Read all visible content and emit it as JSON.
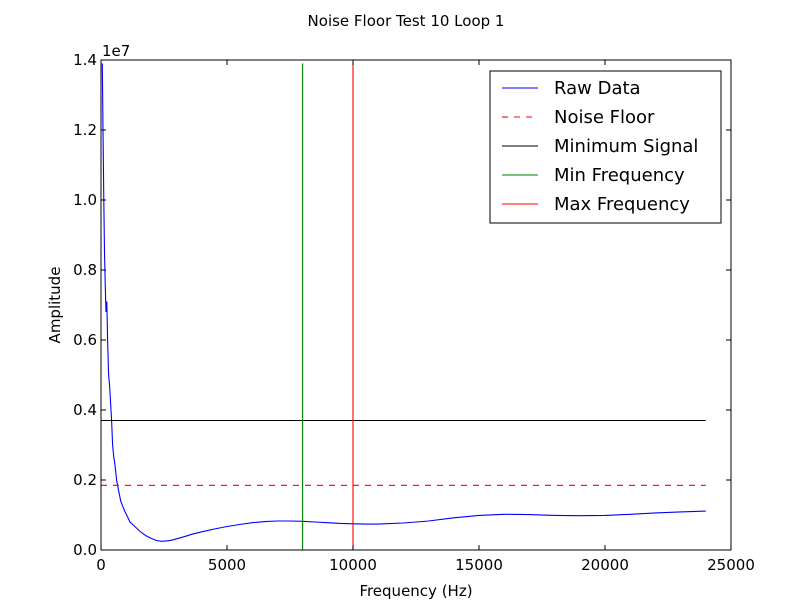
{
  "chart_data": {
    "type": "line",
    "title": "Noise Floor Test 10 Loop 1",
    "xlabel": "Frequency (Hz)",
    "ylabel": "Amplitude",
    "y_offset_label": "1e7",
    "xlim": [
      0,
      25000
    ],
    "ylim": [
      0,
      1.4
    ],
    "x_ticks": [
      0,
      5000,
      10000,
      15000,
      20000,
      25000
    ],
    "x_tick_labels": [
      "0",
      "5000",
      "10000",
      "15000",
      "20000",
      "25000"
    ],
    "y_ticks": [
      0,
      0.2,
      0.4,
      0.6,
      0.8,
      1.0,
      1.2,
      1.4
    ],
    "y_tick_labels": [
      "0.0",
      "0.2",
      "0.4",
      "0.6",
      "0.8",
      "1.0",
      "1.2",
      "1.4"
    ],
    "grid": false,
    "legend_position": "top-right",
    "series": [
      {
        "name": "Raw Data",
        "color": "#0000ff",
        "style": "solid",
        "x": [
          50,
          80,
          110,
          140,
          170,
          200,
          230,
          260,
          300,
          340,
          380,
          420,
          460,
          500,
          560,
          620,
          700,
          780,
          860,
          950,
          1050,
          1150,
          1300,
          1450,
          1600,
          1800,
          2000,
          2200,
          2400,
          2600,
          2800,
          3000,
          3300,
          3600,
          4000,
          4500,
          5000,
          5500,
          6000,
          6500,
          7000,
          7500,
          8000,
          8500,
          9000,
          9500,
          10000,
          10500,
          11000,
          12000,
          13000,
          14000,
          15000,
          16000,
          17000,
          18000,
          19000,
          20000,
          21000,
          22000,
          23000,
          24000
        ],
        "y": [
          1.39,
          1.2,
          1.0,
          0.85,
          0.75,
          0.68,
          0.71,
          0.6,
          0.5,
          0.47,
          0.42,
          0.37,
          0.3,
          0.27,
          0.24,
          0.2,
          0.17,
          0.14,
          0.125,
          0.11,
          0.095,
          0.08,
          0.07,
          0.06,
          0.05,
          0.04,
          0.033,
          0.027,
          0.025,
          0.026,
          0.028,
          0.032,
          0.038,
          0.045,
          0.052,
          0.06,
          0.067,
          0.073,
          0.078,
          0.081,
          0.083,
          0.083,
          0.082,
          0.08,
          0.078,
          0.076,
          0.075,
          0.074,
          0.074,
          0.077,
          0.083,
          0.092,
          0.099,
          0.102,
          0.101,
          0.099,
          0.098,
          0.099,
          0.102,
          0.106,
          0.109,
          0.111
        ]
      },
      {
        "name": "Noise Floor",
        "color": "#ff0000",
        "style": "dashed",
        "x": [
          0,
          24000
        ],
        "y": [
          0.185,
          0.185
        ]
      },
      {
        "name": "Minimum Signal",
        "color": "#000000",
        "style": "solid",
        "x": [
          0,
          24000
        ],
        "y": [
          0.37,
          0.37
        ]
      },
      {
        "name": "Min Frequency",
        "color": "#008000",
        "style": "solid",
        "x": [
          8000,
          8000
        ],
        "y": [
          0,
          1.39
        ]
      },
      {
        "name": "Max Frequency",
        "color": "#ff0000",
        "style": "solid",
        "x": [
          10000,
          10000
        ],
        "y": [
          0,
          1.39
        ]
      }
    ]
  }
}
